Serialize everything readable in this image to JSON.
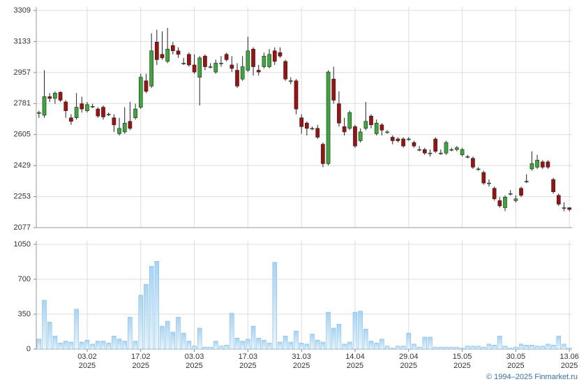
{
  "chart_data": [
    {
      "type": "candlestick",
      "up_color": "#3aa83a",
      "down_color": "#a01010",
      "grid": true,
      "ylim": [
        2077,
        3309
      ],
      "yticks": [
        2077,
        2253,
        2429,
        2605,
        2781,
        2957,
        3133,
        3309
      ],
      "open": [
        2725,
        2715,
        2820,
        2810,
        2845,
        2790,
        2700,
        2700,
        2780,
        2740,
        2765,
        2750,
        2760,
        2720,
        2700,
        2610,
        2620,
        2680,
        2700,
        2760,
        2910,
        2880,
        3130,
        3060,
        3020,
        3110,
        3080,
        3010,
        3060,
        3000,
        2930,
        3050,
        2990,
        2960,
        3010,
        3060,
        3000,
        2970,
        2920,
        2970,
        3090,
        2970,
        2990,
        2990,
        3080,
        3070,
        3020,
        2910,
        2910,
        2700,
        2670,
        2640,
        2640,
        2550,
        2440,
        2920,
        2780,
        2650,
        2640,
        2650,
        2570,
        2640,
        2710,
        2610,
        2660,
        2620,
        2590,
        2580,
        2580,
        2580,
        2560,
        2520,
        2520,
        2500,
        2580,
        2500,
        2500,
        2520,
        2520,
        2490,
        2480,
        2470,
        2410,
        2390,
        2330,
        2300,
        2230,
        2190,
        2270,
        2230,
        2300,
        2340,
        2410,
        2420,
        2450,
        2450,
        2350,
        2260,
        2190,
        2190
      ],
      "high": [
        2740,
        2970,
        2840,
        2850,
        2850,
        2800,
        2720,
        2840,
        2820,
        2790,
        2780,
        2760,
        2770,
        2730,
        2720,
        2700,
        2760,
        2790,
        2780,
        2950,
        2950,
        3180,
        3200,
        3190,
        3210,
        3130,
        3100,
        3040,
        3070,
        3060,
        3050,
        3060,
        3010,
        3030,
        3050,
        3070,
        3050,
        3010,
        3050,
        3160,
        3100,
        3000,
        3070,
        3090,
        3100,
        3100,
        3030,
        2930,
        2920,
        2720,
        2680,
        2650,
        2660,
        2560,
        2970,
        2990,
        2850,
        2700,
        2740,
        2660,
        2640,
        2790,
        2720,
        2690,
        2670,
        2630,
        2600,
        2590,
        2590,
        2590,
        2570,
        2540,
        2530,
        2520,
        2590,
        2520,
        2570,
        2530,
        2540,
        2530,
        2490,
        2480,
        2420,
        2400,
        2350,
        2310,
        2250,
        2260,
        2290,
        2260,
        2310,
        2380,
        2510,
        2490,
        2460,
        2460,
        2360,
        2270,
        2220,
        2190
      ],
      "low": [
        2700,
        2700,
        2790,
        2780,
        2790,
        2700,
        2660,
        2690,
        2730,
        2730,
        2755,
        2700,
        2690,
        2710,
        2620,
        2600,
        2610,
        2630,
        2690,
        2750,
        2840,
        2870,
        3000,
        3030,
        3010,
        3060,
        3040,
        3000,
        2990,
        2950,
        2770,
        2970,
        2980,
        2950,
        2990,
        3020,
        2960,
        2870,
        2910,
        2960,
        2940,
        2940,
        2980,
        2980,
        3000,
        3040,
        2910,
        2890,
        2720,
        2610,
        2600,
        2630,
        2580,
        2420,
        2430,
        2780,
        2650,
        2600,
        2630,
        2530,
        2560,
        2630,
        2640,
        2600,
        2600,
        2610,
        2550,
        2560,
        2530,
        2570,
        2530,
        2510,
        2490,
        2480,
        2500,
        2490,
        2490,
        2510,
        2510,
        2480,
        2470,
        2410,
        2400,
        2320,
        2310,
        2230,
        2190,
        2170,
        2260,
        2220,
        2250,
        2330,
        2400,
        2410,
        2410,
        2410,
        2270,
        2200,
        2170,
        2170
      ],
      "close": [
        2730,
        2820,
        2810,
        2840,
        2800,
        2740,
        2680,
        2760,
        2750,
        2775,
        2765,
        2710,
        2705,
        2720,
        2660,
        2640,
        2670,
        2640,
        2750,
        2930,
        2850,
        3080,
        3030,
        3040,
        3090,
        3080,
        3060,
        3010,
        3000,
        2960,
        3040,
        2990,
        2990,
        3010,
        3010,
        3030,
        2980,
        2880,
        2990,
        3080,
        2990,
        2960,
        3050,
        3060,
        3020,
        3050,
        2920,
        2910,
        2750,
        2650,
        2640,
        2640,
        2590,
        2440,
        2960,
        2800,
        2670,
        2620,
        2730,
        2540,
        2620,
        2680,
        2660,
        2670,
        2630,
        2620,
        2570,
        2570,
        2540,
        2580,
        2540,
        2520,
        2500,
        2500,
        2510,
        2500,
        2560,
        2520,
        2530,
        2520,
        2480,
        2420,
        2410,
        2330,
        2330,
        2240,
        2200,
        2250,
        2270,
        2240,
        2260,
        2340,
        2440,
        2460,
        2420,
        2420,
        2280,
        2210,
        2190,
        2180
      ]
    },
    {
      "type": "bar",
      "color": "#a8d4f5",
      "grid": true,
      "ylim": [
        0,
        1050
      ],
      "yticks": [
        0,
        350,
        700,
        1050
      ],
      "categories": [
        null,
        null,
        null,
        null,
        null,
        null,
        null,
        null,
        null,
        "03.02\n2025",
        null,
        null,
        null,
        null,
        null,
        null,
        null,
        null,
        null,
        "17.02\n2025",
        null,
        null,
        null,
        null,
        null,
        null,
        null,
        null,
        null,
        "03.03\n2025",
        null,
        null,
        null,
        null,
        null,
        null,
        null,
        null,
        null,
        "17.03\n2025",
        null,
        null,
        null,
        null,
        null,
        null,
        null,
        null,
        null,
        "31.03\n2025",
        null,
        null,
        null,
        null,
        null,
        null,
        null,
        null,
        null,
        "14.04\n2025",
        null,
        null,
        null,
        null,
        null,
        null,
        null,
        null,
        null,
        "29.04\n2025",
        null,
        null,
        null,
        null,
        null,
        null,
        null,
        null,
        null,
        "15.05\n2025",
        null,
        null,
        null,
        null,
        null,
        null,
        null,
        null,
        null,
        "30.05\n2025",
        null,
        null,
        null,
        null,
        null,
        null,
        null,
        null,
        null,
        "13.06\n2025"
      ],
      "values": [
        100,
        490,
        270,
        130,
        60,
        80,
        70,
        400,
        70,
        90,
        50,
        80,
        80,
        60,
        130,
        100,
        80,
        320,
        80,
        540,
        650,
        830,
        880,
        230,
        280,
        170,
        320,
        160,
        80,
        30,
        210,
        20,
        20,
        80,
        30,
        40,
        360,
        110,
        80,
        100,
        230,
        110,
        90,
        60,
        870,
        70,
        130,
        70,
        180,
        60,
        50,
        150,
        90,
        70,
        370,
        210,
        250,
        50,
        70,
        370,
        380,
        200,
        80,
        60,
        100,
        30,
        10,
        30,
        30,
        160,
        50,
        20,
        120,
        120,
        20,
        20,
        20,
        20,
        20,
        10,
        30,
        30,
        30,
        20,
        50,
        40,
        130,
        30,
        10,
        20,
        50,
        40,
        40,
        30,
        30,
        50,
        40,
        130,
        50,
        10
      ]
    }
  ],
  "footer": "© 1994–2025 Finmarket.ru"
}
